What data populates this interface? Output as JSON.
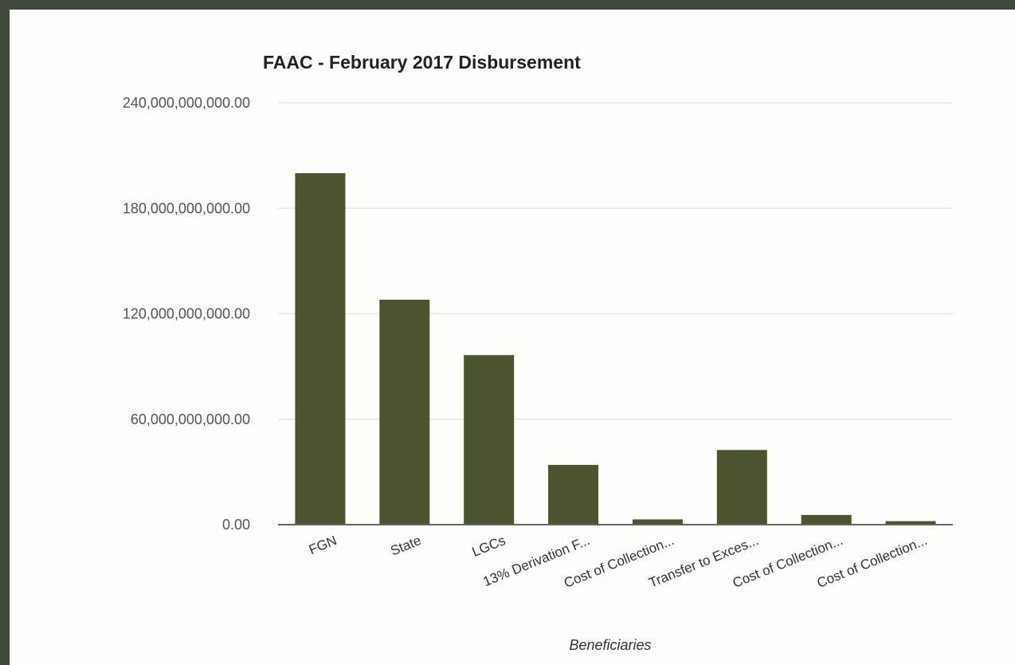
{
  "chart_data": {
    "type": "bar",
    "title": "FAAC - February 2017 Disbursement",
    "xlabel": "Beneficiaries",
    "ylabel": "",
    "ylim": [
      0,
      240000000000
    ],
    "yticks": [
      0,
      60000000000,
      120000000000,
      180000000000,
      240000000000
    ],
    "ytick_labels": [
      "0.00",
      "60,000,000,000.00",
      "120,000,000,000.00",
      "180,000,000,000.00",
      "240,000,000,000.00"
    ],
    "categories": [
      "FGN",
      "State",
      "LGCs",
      "13% Derivation F...",
      "Cost of Collection...",
      "Transfer to Exces...",
      "Cost of Collection...",
      "Cost of Collection..."
    ],
    "values": [
      200000000000,
      128000000000,
      96500000000,
      34000000000,
      3000000000,
      42500000000,
      5500000000,
      2000000000
    ],
    "grid": true,
    "legend": "none",
    "colors": {
      "bar": "#4a5530",
      "grid": "#e6e6e6",
      "axis": "#666666",
      "frame": "#41493a",
      "background": "#fdfdf9"
    }
  }
}
